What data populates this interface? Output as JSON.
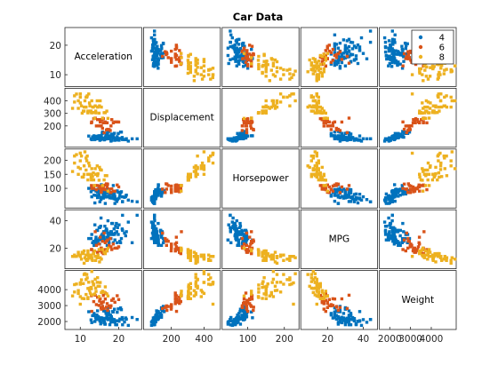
{
  "chart_data": {
    "type": "scatter",
    "subtype": "scatter-matrix",
    "title": "Car Data",
    "variables": [
      "Acceleration",
      "Displacement",
      "Horsepower",
      "MPG",
      "Weight"
    ],
    "ranges": {
      "Acceleration": [
        6,
        26
      ],
      "Displacement": [
        30,
        500
      ],
      "Horsepower": [
        30,
        240
      ],
      "MPG": [
        5,
        48
      ],
      "Weight": [
        1500,
        5200
      ]
    },
    "y_ticks": {
      "Acceleration": [
        10,
        20
      ],
      "Displacement": [
        200,
        300,
        400
      ],
      "Horsepower": [
        100,
        150,
        200
      ],
      "MPG": [
        20,
        40
      ],
      "Weight": [
        2000,
        3000,
        4000
      ]
    },
    "x_ticks": {
      "Acceleration": [
        10,
        20
      ],
      "Displacement": [
        200,
        400
      ],
      "Horsepower": [
        100,
        200
      ],
      "MPG": [
        20,
        40
      ],
      "Weight": [
        2000,
        3000,
        4000
      ]
    },
    "grid": false,
    "legend_placement": "top-right",
    "series": [
      {
        "name": "4",
        "color": "#0072BD",
        "points": [
          [
            15,
            97,
            88,
            27,
            2130
          ],
          [
            16.5,
            97,
            46,
            26,
            1835
          ],
          [
            14.5,
            110,
            87,
            25,
            2672
          ],
          [
            17.5,
            107,
            90,
            24,
            2430
          ],
          [
            13.5,
            104,
            95,
            25,
            2375
          ],
          [
            15.5,
            121,
            113,
            26,
            2234
          ],
          [
            19,
            97,
            46,
            26,
            1950
          ],
          [
            14,
            113,
            95,
            24,
            2278
          ],
          [
            17,
            140,
            90,
            28,
            2264
          ],
          [
            16,
            98,
            65,
            29,
            2065
          ],
          [
            18,
            79,
            67,
            27,
            1963
          ],
          [
            19.5,
            91,
            53,
            32,
            1795
          ],
          [
            15,
            122,
            86,
            23,
            2220
          ],
          [
            14,
            108,
            75,
            26,
            2265
          ],
          [
            16,
            97,
            75,
            31,
            2171
          ],
          [
            17,
            140,
            72,
            22,
            2408
          ],
          [
            13,
            90,
            70,
            30,
            1937
          ],
          [
            21,
            91,
            53,
            33,
            1795
          ],
          [
            15.5,
            98,
            68,
            29,
            2155
          ],
          [
            19,
            85,
            70,
            31,
            1990
          ],
          [
            16.5,
            112,
            88,
            25,
            2640
          ],
          [
            23.5,
            97,
            54,
            24,
            2254
          ],
          [
            18.5,
            105,
            74,
            30,
            1980
          ],
          [
            14.5,
            97,
            67,
            33,
            2145
          ],
          [
            17.5,
            120,
            88,
            27,
            2160
          ],
          [
            20.5,
            151,
            85,
            24,
            2855
          ],
          [
            21.5,
            91,
            68,
            31,
            1970
          ],
          [
            16.4,
            98,
            80,
            36,
            1835
          ],
          [
            18.2,
            85,
            65,
            38,
            2020
          ],
          [
            15.8,
            151,
            90,
            27,
            2950
          ],
          [
            14.9,
            97,
            78,
            35,
            2188
          ],
          [
            19.4,
            89,
            62,
            38,
            2050
          ],
          [
            17.3,
            120,
            97,
            29,
            2506
          ],
          [
            20.1,
            86,
            65,
            37,
            2019
          ],
          [
            22,
            98,
            76,
            32,
            2144
          ],
          [
            16.9,
            135,
            84,
            33,
            2370
          ],
          [
            18.8,
            105,
            63,
            34,
            2125
          ],
          [
            15.3,
            91,
            67,
            36,
            1850
          ],
          [
            17.6,
            107,
            75,
            31,
            2210
          ],
          [
            13.2,
            113,
            95,
            24,
            2372
          ],
          [
            14.7,
            119,
            97,
            26,
            2300
          ],
          [
            19.9,
            140,
            86,
            30,
            2790
          ],
          [
            16.2,
            89,
            71,
            28,
            1925
          ],
          [
            18.6,
            121,
            110,
            24,
            2600
          ],
          [
            21,
            97,
            52,
            44,
            2130
          ],
          [
            15.7,
            140,
            92,
            30,
            2865
          ],
          [
            17.9,
            112,
            85,
            32,
            2395
          ],
          [
            12.8,
            97,
            88,
            27,
            2100
          ],
          [
            19.2,
            91,
            60,
            36,
            1800
          ],
          [
            16.7,
            134,
            95,
            33,
            2515
          ],
          [
            14.3,
            108,
            93,
            33,
            2410
          ],
          [
            20.7,
            151,
            88,
            27,
            2740
          ],
          [
            17.2,
            98,
            70,
            40,
            2120
          ],
          [
            18.4,
            120,
            79,
            38,
            2625
          ],
          [
            15.1,
            85,
            52,
            35,
            2035
          ],
          [
            22.5,
            79,
            58,
            39,
            1755
          ],
          [
            16.8,
            105,
            70,
            34,
            2200
          ],
          [
            13.8,
            91,
            48,
            37,
            2000
          ],
          [
            19.6,
            114,
            91,
            24,
            2582
          ],
          [
            17.4,
            156,
            92,
            26,
            2620
          ],
          [
            14.1,
            116,
            90,
            28,
            2123
          ],
          [
            21.8,
            90,
            71,
            29,
            2223
          ],
          [
            15.9,
            101,
            83,
            27,
            2202
          ],
          [
            18.9,
            141,
            80,
            30,
            2770
          ],
          [
            24.8,
            97,
            52,
            44,
            2130
          ],
          [
            16.1,
            144,
            96,
            32,
            2665
          ],
          [
            12.2,
            119,
            100,
            27,
            2615
          ],
          [
            17.7,
            98,
            66,
            30,
            1800
          ],
          [
            20.3,
            100,
            75,
            25,
            2150
          ],
          [
            13.6,
            121,
            76,
            22,
            2511
          ],
          [
            15.6,
            104,
            92,
            28,
            2160
          ],
          [
            18.1,
            135,
            84,
            32,
            2295
          ],
          [
            16.6,
            96,
            69,
            26,
            2189
          ],
          [
            19.7,
            89,
            60,
            35,
            2045
          ],
          [
            14.6,
            120,
            75,
            24,
            2300
          ],
          [
            17.1,
            146,
            97,
            31,
            2815
          ],
          [
            20.9,
            108,
            70,
            34,
            2245
          ],
          [
            15.4,
            97,
            60,
            42,
            1950
          ],
          [
            18.3,
            111,
            80,
            30,
            2155
          ],
          [
            16.3,
            91,
            70,
            32,
            1990
          ]
        ]
      },
      {
        "name": "6",
        "color": "#D95319",
        "points": [
          [
            13,
            232,
            100,
            19,
            2634
          ],
          [
            15.5,
            199,
            97,
            18,
            2774
          ],
          [
            16,
            258,
            110,
            16,
            3632
          ],
          [
            15,
            250,
            100,
            18,
            3282
          ],
          [
            17,
            225,
            105,
            18,
            3121
          ],
          [
            15.5,
            250,
            88,
            20,
            3139
          ],
          [
            19,
            232,
            90,
            20,
            3210
          ],
          [
            16.5,
            225,
            95,
            19,
            3785
          ],
          [
            18,
            200,
            85,
            21,
            2990
          ],
          [
            14.5,
            250,
            110,
            17,
            3520
          ],
          [
            20,
            231,
            105,
            21,
            3380
          ],
          [
            13.5,
            258,
            100,
            17,
            3250
          ],
          [
            17.5,
            171,
            97,
            22,
            2984
          ],
          [
            16,
            225,
            100,
            18,
            3233
          ],
          [
            15.4,
            200,
            86,
            20,
            2875
          ],
          [
            18.2,
            250,
            98,
            19,
            3329
          ],
          [
            19.6,
            232,
            112,
            20,
            3620
          ],
          [
            14.9,
            200,
            108,
            23,
            3012
          ],
          [
            17.1,
            173,
            115,
            26,
            2700
          ],
          [
            15.8,
            181,
            110,
            25,
            2945
          ],
          [
            16.2,
            146,
            97,
            31,
            2815
          ],
          [
            13.9,
            262,
            110,
            32,
            3650
          ],
          [
            18.6,
            225,
            90,
            23,
            3430
          ],
          [
            15.2,
            231,
            105,
            28,
            3425
          ],
          [
            16.8,
            168,
            116,
            25,
            2900
          ],
          [
            14.2,
            200,
            95,
            22,
            3060
          ],
          [
            17.8,
            163,
            85,
            27,
            2880
          ],
          [
            12.9,
            225,
            110,
            19,
            3620
          ],
          [
            15.7,
            250,
            97,
            17,
            3190
          ],
          [
            16.5,
            232,
            112,
            24,
            3410
          ]
        ]
      },
      {
        "name": "8",
        "color": "#EDB120",
        "points": [
          [
            12,
            307,
            130,
            18,
            3504
          ],
          [
            11.5,
            350,
            165,
            15,
            3693
          ],
          [
            11,
            318,
            150,
            18,
            3436
          ],
          [
            12,
            304,
            150,
            16,
            3433
          ],
          [
            10.5,
            302,
            140,
            17,
            3449
          ],
          [
            10,
            429,
            198,
            15,
            4341
          ],
          [
            9,
            454,
            220,
            14,
            4354
          ],
          [
            8.5,
            440,
            215,
            14,
            4312
          ],
          [
            10,
            455,
            225,
            14,
            4425
          ],
          [
            8.5,
            390,
            190,
            15,
            3850
          ],
          [
            10,
            383,
            170,
            15,
            3563
          ],
          [
            8,
            340,
            160,
            14,
            3609
          ],
          [
            9.5,
            400,
            150,
            15,
            3761
          ],
          [
            10,
            455,
            225,
            14,
            3086
          ],
          [
            15,
            360,
            175,
            10,
            4215
          ],
          [
            14,
            318,
            150,
            11,
            4096
          ],
          [
            14.5,
            350,
            145,
            13,
            4746
          ],
          [
            13,
            400,
            170,
            12,
            5140
          ],
          [
            12.5,
            360,
            150,
            13,
            4098
          ],
          [
            13.5,
            307,
            130,
            16,
            4294
          ],
          [
            11,
            350,
            180,
            9,
            4951
          ],
          [
            12,
            318,
            150,
            12,
            4077
          ],
          [
            13,
            304,
            150,
            13,
            3672
          ],
          [
            11.5,
            429,
            208,
            12,
            4633
          ],
          [
            13.2,
            351,
            142,
            11,
            4502
          ],
          [
            14.4,
            400,
            180,
            13,
            4457
          ],
          [
            12.8,
            318,
            140,
            14,
            4140
          ],
          [
            11.8,
            440,
            215,
            11,
            4735
          ],
          [
            15.5,
            350,
            165,
            12,
            3820
          ],
          [
            16.5,
            305,
            145,
            16,
            4175
          ],
          [
            13.7,
            260,
            110,
            18,
            3725
          ],
          [
            14.9,
            302,
            129,
            19,
            3570
          ],
          [
            12.4,
            383,
            180,
            14,
            3955
          ],
          [
            10.8,
            318,
            140,
            16,
            4380
          ],
          [
            15.8,
            262,
            110,
            19,
            3900
          ],
          [
            13.9,
            360,
            170,
            14,
            4654
          ],
          [
            11.2,
            400,
            230,
            13,
            4997
          ],
          [
            12.2,
            455,
            190,
            14,
            4464
          ],
          [
            14.6,
            351,
            152,
            15,
            4215
          ],
          [
            16.2,
            305,
            130,
            17,
            3840
          ],
          [
            9.5,
            340,
            175,
            17,
            3940
          ],
          [
            12.6,
            318,
            150,
            15,
            3777
          ],
          [
            13.4,
            350,
            155,
            16,
            4360
          ],
          [
            17.2,
            260,
            90,
            20,
            3600
          ],
          [
            11.7,
            429,
            198,
            11,
            4952
          ],
          [
            14.1,
            304,
            150,
            14,
            3892
          ],
          [
            15.2,
            400,
            167,
            13,
            4450
          ],
          [
            12.9,
            307,
            130,
            15,
            4060
          ],
          [
            10.3,
            360,
            215,
            12,
            4615
          ],
          [
            16.9,
            318,
            145,
            18,
            3735
          ]
        ]
      }
    ]
  }
}
